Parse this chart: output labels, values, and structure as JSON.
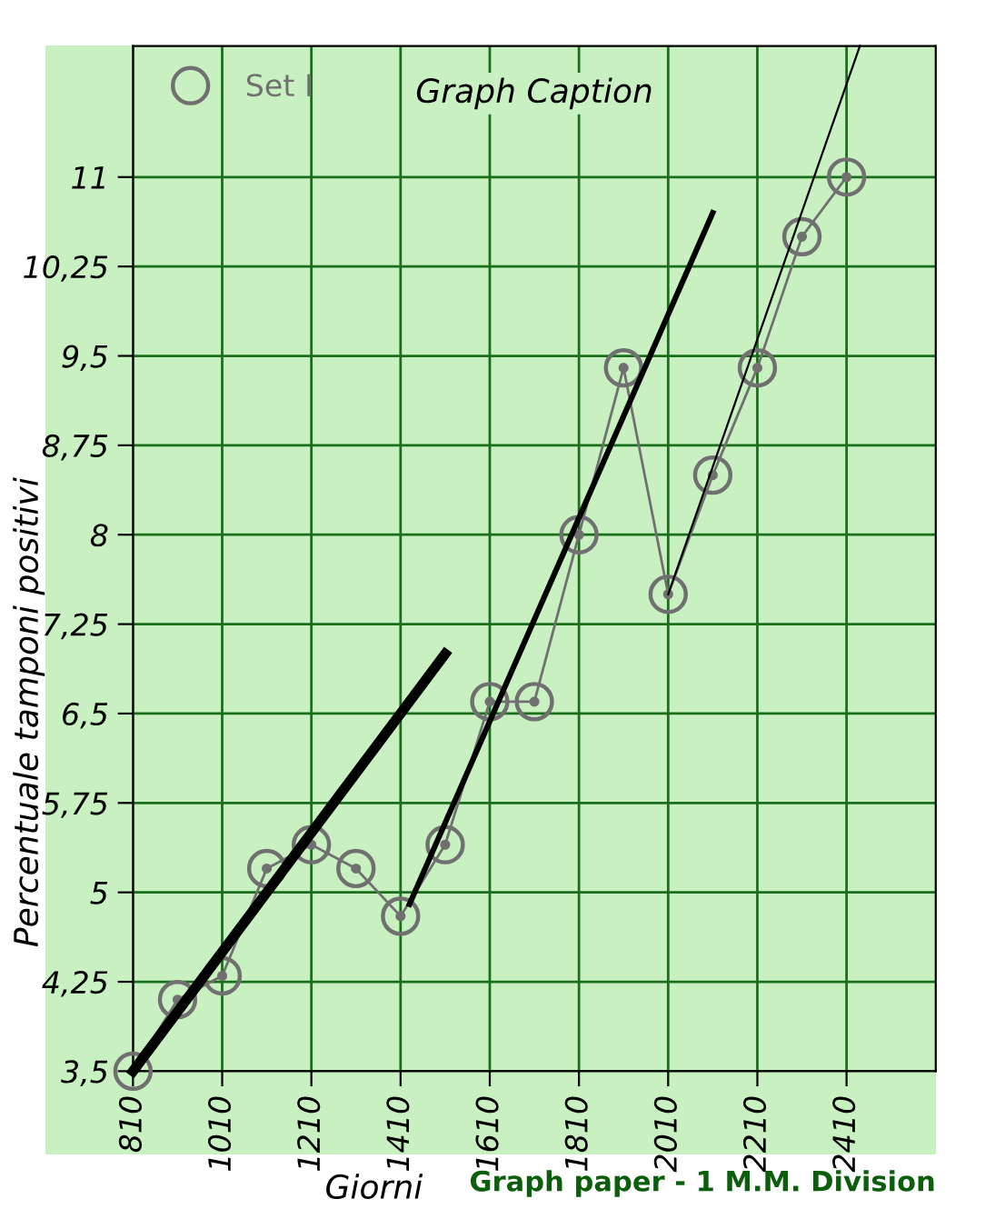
{
  "chart_data": {
    "type": "line",
    "title": "Graph Caption",
    "xlabel": "Giorni",
    "ylabel": "Percentuale tamponi positivi",
    "annotations": [
      "Graph paper - 1 M.M. Division"
    ],
    "series": [
      {
        "name": "Set I",
        "color": "#707070",
        "marker": "circle",
        "x": [
          810,
          910,
          1010,
          1110,
          1210,
          1310,
          1410,
          1510,
          1610,
          1710,
          1810,
          1910,
          2010,
          2110,
          2210,
          2310,
          2410
        ],
        "values": [
          3.5,
          4.1,
          4.3,
          5.2,
          5.4,
          5.2,
          4.8,
          5.4,
          6.6,
          6.6,
          8.0,
          9.4,
          7.5,
          8.5,
          9.4,
          10.5,
          11.0
        ]
      },
      {
        "color": "#000000",
        "x": [
          810,
          1510
        ],
        "values": [
          3.5,
          7.0
        ]
      },
      {
        "color": "#000000",
        "x": [
          1430,
          2110
        ],
        "values": [
          4.9,
          10.7
        ]
      },
      {
        "color": "#000000",
        "x": [
          2010,
          2440
        ],
        "values": [
          7.5,
          12.1
        ]
      }
    ],
    "xlim": [
      810,
      2610
    ],
    "ylim": [
      3.5,
      12.1
    ],
    "xticks": [
      810,
      1010,
      1210,
      1410,
      1610,
      1810,
      2010,
      2210,
      2410
    ],
    "yticks": [
      {
        "value": 3.5,
        "label": "3,5"
      },
      {
        "value": 4.25,
        "label": "4,25"
      },
      {
        "value": 5,
        "label": "5"
      },
      {
        "value": 5.75,
        "label": "5,75"
      },
      {
        "value": 6.5,
        "label": "6,5"
      },
      {
        "value": 7.25,
        "label": "7,25"
      },
      {
        "value": 8,
        "label": "8"
      },
      {
        "value": 8.75,
        "label": "8,75"
      },
      {
        "value": 9.5,
        "label": "9,5"
      },
      {
        "value": 10.25,
        "label": "10,25"
      },
      {
        "value": 11,
        "label": "11"
      }
    ],
    "grid": true,
    "legend": "top left"
  }
}
